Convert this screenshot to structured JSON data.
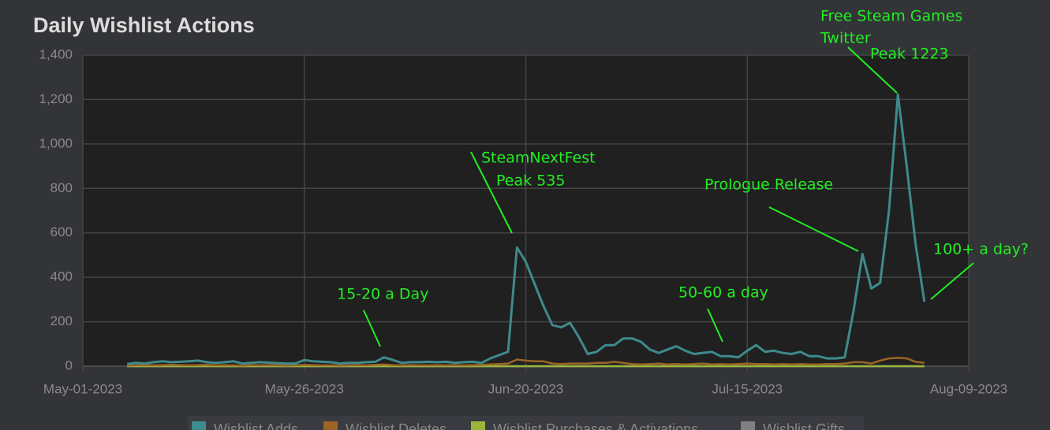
{
  "chart_data": {
    "type": "line",
    "title": "Daily Wishlist Actions",
    "x": [
      "2023-05-06",
      "2023-05-07",
      "2023-05-08",
      "2023-05-09",
      "2023-05-10",
      "2023-05-11",
      "2023-05-12",
      "2023-05-13",
      "2023-05-14",
      "2023-05-15",
      "2023-05-16",
      "2023-05-17",
      "2023-05-18",
      "2023-05-19",
      "2023-05-20",
      "2023-05-21",
      "2023-05-22",
      "2023-05-23",
      "2023-05-24",
      "2023-05-25",
      "2023-05-26",
      "2023-05-27",
      "2023-05-28",
      "2023-05-29",
      "2023-05-30",
      "2023-05-31",
      "2023-06-01",
      "2023-06-02",
      "2023-06-03",
      "2023-06-04",
      "2023-06-05",
      "2023-06-06",
      "2023-06-07",
      "2023-06-08",
      "2023-06-09",
      "2023-06-10",
      "2023-06-11",
      "2023-06-12",
      "2023-06-13",
      "2023-06-14",
      "2023-06-15",
      "2023-06-16",
      "2023-06-17",
      "2023-06-18",
      "2023-06-19",
      "2023-06-20",
      "2023-06-21",
      "2023-06-22",
      "2023-06-23",
      "2023-06-24",
      "2023-06-25",
      "2023-06-26",
      "2023-06-27",
      "2023-06-28",
      "2023-06-29",
      "2023-06-30",
      "2023-07-01",
      "2023-07-02",
      "2023-07-03",
      "2023-07-04",
      "2023-07-05",
      "2023-07-06",
      "2023-07-07",
      "2023-07-08",
      "2023-07-09",
      "2023-07-10",
      "2023-07-11",
      "2023-07-12",
      "2023-07-13",
      "2023-07-14",
      "2023-07-15",
      "2023-07-16",
      "2023-07-17",
      "2023-07-18",
      "2023-07-19",
      "2023-07-20",
      "2023-07-21",
      "2023-07-22",
      "2023-07-23",
      "2023-07-24",
      "2023-07-25",
      "2023-07-26",
      "2023-07-27",
      "2023-07-28",
      "2023-07-29",
      "2023-07-30",
      "2023-07-31",
      "2023-08-01",
      "2023-08-02",
      "2023-08-03",
      "2023-08-04"
    ],
    "series": [
      {
        "name": "Wishlist Adds",
        "color": "#3f8a8c",
        "values": [
          10,
          15,
          12,
          18,
          22,
          18,
          20,
          22,
          25,
          18,
          15,
          18,
          22,
          12,
          15,
          18,
          16,
          14,
          12,
          12,
          28,
          22,
          20,
          18,
          12,
          15,
          15,
          18,
          20,
          40,
          28,
          15,
          18,
          18,
          20,
          18,
          20,
          15,
          18,
          20,
          15,
          35,
          50,
          65,
          535,
          470,
          370,
          270,
          185,
          175,
          195,
          130,
          55,
          65,
          95,
          95,
          125,
          125,
          110,
          75,
          60,
          75,
          90,
          70,
          55,
          60,
          65,
          45,
          45,
          40,
          70,
          95,
          65,
          70,
          60,
          55,
          65,
          45,
          45,
          35,
          35,
          40,
          250,
          505,
          350,
          375,
          700,
          1223,
          900,
          550,
          290
        ]
      },
      {
        "name": "Wishlist Deletes",
        "color": "#9a6526",
        "values": [
          3,
          4,
          5,
          4,
          5,
          6,
          5,
          4,
          5,
          6,
          4,
          5,
          4,
          3,
          5,
          4,
          5,
          4,
          3,
          4,
          6,
          5,
          4,
          4,
          3,
          4,
          5,
          4,
          6,
          8,
          5,
          4,
          5,
          4,
          4,
          5,
          4,
          5,
          4,
          5,
          6,
          8,
          10,
          12,
          30,
          25,
          22,
          22,
          12,
          10,
          12,
          12,
          12,
          15,
          15,
          20,
          15,
          10,
          8,
          10,
          12,
          8,
          10,
          8,
          10,
          12,
          8,
          10,
          8,
          10,
          12,
          10,
          10,
          8,
          10,
          8,
          10,
          8,
          8,
          10,
          10,
          12,
          18,
          18,
          12,
          25,
          35,
          38,
          35,
          20,
          15
        ]
      },
      {
        "name": "Wishlist Purchases & Activations",
        "color": "#9ab53a",
        "values": [
          0,
          0,
          0,
          0,
          0,
          0,
          0,
          0,
          0,
          0,
          0,
          0,
          0,
          0,
          0,
          0,
          0,
          0,
          0,
          0,
          0,
          0,
          0,
          0,
          0,
          0,
          0,
          0,
          0,
          0,
          0,
          0,
          0,
          0,
          0,
          0,
          0,
          0,
          0,
          0,
          0,
          0,
          0,
          0,
          0,
          0,
          0,
          0,
          0,
          0,
          0,
          0,
          0,
          0,
          0,
          0,
          0,
          0,
          0,
          0,
          0,
          0,
          0,
          0,
          0,
          0,
          0,
          0,
          0,
          0,
          0,
          0,
          0,
          0,
          0,
          0,
          0,
          0,
          0,
          0,
          0,
          0,
          0,
          0,
          0,
          0,
          0,
          0,
          0,
          0,
          0
        ]
      },
      {
        "name": "Wishlist Gifts",
        "color": "#808080",
        "values": [
          0,
          0,
          0,
          0,
          0,
          0,
          0,
          0,
          0,
          0,
          0,
          0,
          0,
          0,
          0,
          0,
          0,
          0,
          0,
          0,
          0,
          0,
          0,
          0,
          0,
          0,
          0,
          0,
          0,
          0,
          0,
          0,
          0,
          0,
          0,
          0,
          0,
          0,
          0,
          0,
          0,
          0,
          0,
          0,
          0,
          0,
          0,
          0,
          0,
          0,
          0,
          0,
          0,
          0,
          0,
          0,
          0,
          0,
          0,
          0,
          0,
          0,
          0,
          0,
          0,
          0,
          0,
          0,
          0,
          0,
          0,
          0,
          0,
          0,
          0,
          0,
          0,
          0,
          0,
          0,
          0,
          0,
          0,
          0,
          0,
          0,
          0,
          0,
          0,
          0,
          0
        ]
      }
    ],
    "xlim": [
      "2023-05-01",
      "2023-08-09"
    ],
    "xticks": [
      {
        "value": "2023-05-01",
        "label": "May-01-2023"
      },
      {
        "value": "2023-05-26",
        "label": "May-26-2023"
      },
      {
        "value": "2023-06-20",
        "label": "Jun-20-2023"
      },
      {
        "value": "2023-07-15",
        "label": "Jul-15-2023"
      },
      {
        "value": "2023-08-09",
        "label": "Aug-09-2023"
      }
    ],
    "ylim": [
      0,
      1400
    ],
    "yticks": [
      0,
      200,
      400,
      600,
      800,
      {
        "value": 1000,
        "label": "1,000"
      },
      {
        "value": 1200,
        "label": "1,200"
      },
      {
        "value": 1400,
        "label": "1,400"
      }
    ],
    "grid": true,
    "annotations": [
      "Free Steam Games",
      "Twitter",
      "Peak 1223",
      "SteamNextFest",
      "Peak 535",
      "Prologue Release",
      "15-20 a Day",
      "50-60 a day",
      "100+ a day?"
    ]
  }
}
